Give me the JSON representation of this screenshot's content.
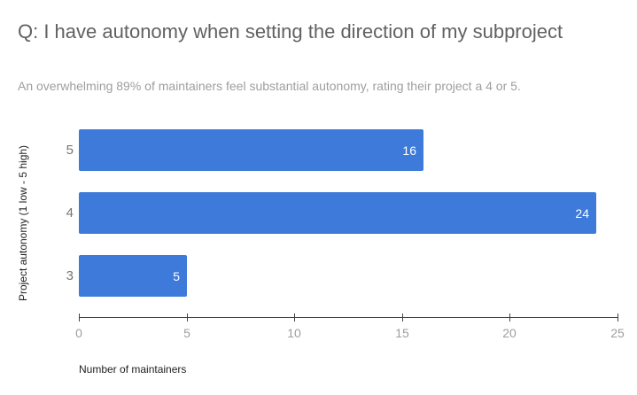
{
  "chart_data": {
    "type": "bar",
    "orientation": "horizontal",
    "title": "Q: I have autonomy when setting the direction of my subproject",
    "subtitle": "An overwhelming 89% of maintainers feel substantial autonomy, rating their project a 4 or 5.",
    "categories": [
      "5",
      "4",
      "3"
    ],
    "values": [
      16,
      24,
      5
    ],
    "value_labels": [
      "16",
      "24",
      "5"
    ],
    "xlabel": "Number of maintainers",
    "ylabel": "Project autonomy (1 low - 5 high)",
    "xlim": [
      0,
      25
    ],
    "xticks": [
      0,
      5,
      10,
      15,
      20,
      25
    ],
    "grid": false,
    "legend": "none",
    "colors": {
      "bar": "#3d7ad9",
      "bar_value_text": "#ffffff",
      "title_text": "#616161",
      "subtitle_text": "#9e9e9e",
      "category_text": "#757575",
      "tick_text": "#9e9e9e",
      "axis_line": "#424242",
      "axis_title_text": "#212121",
      "background": "#ffffff"
    }
  }
}
